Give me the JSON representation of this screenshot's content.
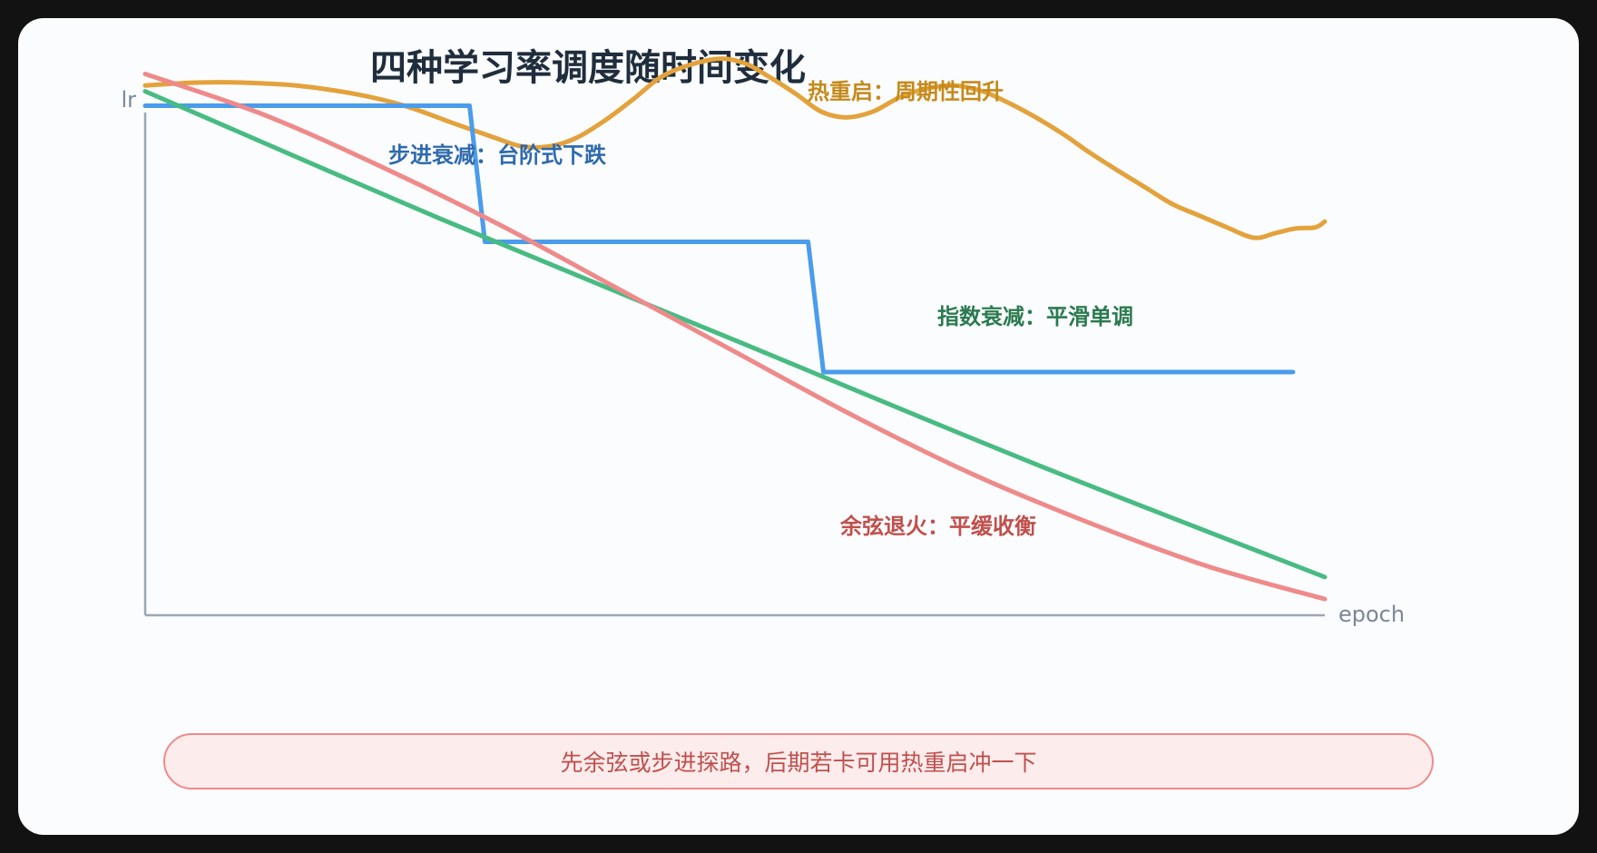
{
  "chart_data": {
    "type": "line",
    "title": "四种学习率调度随时间变化",
    "xlabel": "epoch",
    "ylabel": "lr",
    "xlim": [
      0,
      1
    ],
    "ylim": [
      0,
      1
    ],
    "grid": false,
    "series": [
      {
        "key": "warm_restart",
        "color": "#e3a23c",
        "x": [
          0,
          0.043,
          0.083,
          0.128,
          0.179,
          0.22,
          0.261,
          0.296,
          0.319,
          0.343,
          0.366,
          0.39,
          0.413,
          0.442,
          0.481,
          0.506,
          0.529,
          0.552,
          0.573,
          0.594,
          0.617,
          0.64,
          0.663,
          0.686,
          0.71,
          0.732,
          0.755,
          0.779,
          0.8,
          0.823,
          0.847,
          0.871,
          0.894,
          0.917,
          0.94,
          0.958,
          0.975,
          0.992,
          1.0
        ],
        "values": [
          0.915,
          0.92,
          0.92,
          0.915,
          0.9,
          0.88,
          0.85,
          0.825,
          0.81,
          0.81,
          0.825,
          0.855,
          0.89,
          0.935,
          0.96,
          0.955,
          0.93,
          0.9,
          0.87,
          0.86,
          0.87,
          0.895,
          0.91,
          0.915,
          0.905,
          0.885,
          0.86,
          0.83,
          0.8,
          0.77,
          0.74,
          0.71,
          0.69,
          0.67,
          0.652,
          0.66,
          0.668,
          0.67,
          0.68
        ]
      },
      {
        "key": "step",
        "color": "#4a9ced",
        "x": [
          0,
          0.275,
          0.288,
          0.562,
          0.575,
          0.973
        ],
        "values": [
          0.88,
          0.88,
          0.645,
          0.645,
          0.42,
          0.42
        ]
      },
      {
        "key": "exponential",
        "color": "#48bb82",
        "x": [
          0,
          0.25,
          0.5,
          0.75,
          1.0
        ],
        "values": [
          0.905,
          0.685,
          0.475,
          0.265,
          0.066
        ]
      },
      {
        "key": "cosine",
        "color": "#ef8a8a",
        "x": [
          0,
          0.1,
          0.2,
          0.3,
          0.4,
          0.5,
          0.6,
          0.7,
          0.8,
          0.9,
          1.0
        ],
        "values": [
          0.935,
          0.865,
          0.775,
          0.675,
          0.565,
          0.455,
          0.345,
          0.245,
          0.16,
          0.085,
          0.028
        ]
      }
    ],
    "annotations": [
      {
        "series": "warm_restart",
        "text": "热重启：周期性回升",
        "color": "#c58a1c"
      },
      {
        "series": "step",
        "text": "步进衰减：台阶式下跌",
        "color": "#2e6aad"
      },
      {
        "series": "exponential",
        "text": "指数衰减：平滑单调",
        "color": "#2b7a50"
      },
      {
        "series": "cosine",
        "text": "余弦退火：平缓收衡",
        "color": "#c0504d"
      }
    ]
  },
  "footer_note": "先余弦或步进探路，后期若卡可用热重启冲一下"
}
